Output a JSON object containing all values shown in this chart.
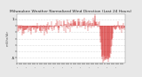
{
  "title": "Milwaukee Weather Normalized Wind Direction (Last 24 Hours)",
  "ylabel_left": "mil/hr/dir",
  "y_ticks": [
    1,
    0,
    -1,
    -2,
    -3,
    -4,
    -5
  ],
  "ylim": [
    -5.8,
    1.8
  ],
  "xlim": [
    0,
    288
  ],
  "num_points": 288,
  "background_color": "#e8e8e8",
  "plot_bg_color": "#ffffff",
  "line_color": "#cc0000",
  "grid_color": "#bbbbbb",
  "title_fontsize": 3.2,
  "tick_fontsize": 3.0,
  "ylabel_fontsize": 2.8
}
